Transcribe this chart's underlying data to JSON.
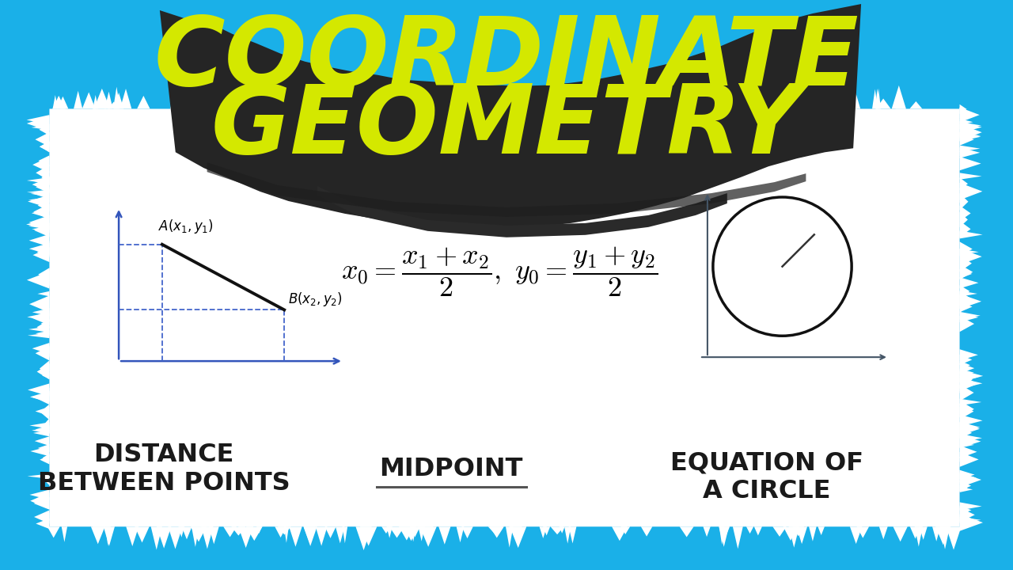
{
  "bg_color": "#1ab0e8",
  "dark_brush_color": "#252525",
  "white_panel_color": "#ffffff",
  "title_line1": "COORDINATE",
  "title_line2": "GEOMETRY",
  "title_color": "#d4e800",
  "title_fontsize": 88,
  "label1": "DISTANCE\nBETWEEN POINTS",
  "label2": "MIDPOINT",
  "label3": "EQUATION OF\nA CIRCLE",
  "label_color": "#1a1a1a",
  "label_fontsize": 23,
  "axis_color": "#3355bb",
  "circle_axis_color": "#445566",
  "diagram_line_color": "#111111",
  "dashed_color": "#4466cc"
}
